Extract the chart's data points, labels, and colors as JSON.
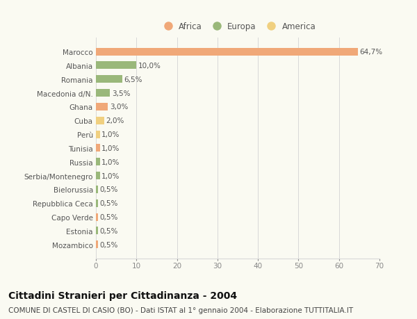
{
  "categories": [
    "Mozambico",
    "Estonia",
    "Capo Verde",
    "Repubblica Ceca",
    "Bielorussia",
    "Serbia/Montenegro",
    "Russia",
    "Tunisia",
    "Perù",
    "Cuba",
    "Ghana",
    "Macedonia d/N.",
    "Romania",
    "Albania",
    "Marocco"
  ],
  "values": [
    0.5,
    0.5,
    0.5,
    0.5,
    0.5,
    1.0,
    1.0,
    1.0,
    1.0,
    2.0,
    3.0,
    3.5,
    6.5,
    10.0,
    64.7
  ],
  "continents": [
    "Africa",
    "Europa",
    "Africa",
    "Europa",
    "Europa",
    "Europa",
    "Europa",
    "Africa",
    "America",
    "America",
    "Africa",
    "Europa",
    "Europa",
    "Europa",
    "Africa"
  ],
  "labels": [
    "0,5%",
    "0,5%",
    "0,5%",
    "0,5%",
    "0,5%",
    "1,0%",
    "1,0%",
    "1,0%",
    "1,0%",
    "2,0%",
    "3,0%",
    "3,5%",
    "6,5%",
    "10,0%",
    "64,7%"
  ],
  "continent_colors": {
    "Africa": "#f0a878",
    "Europa": "#9ab87a",
    "America": "#f0d080"
  },
  "legend_items": [
    {
      "label": "Africa",
      "color": "#f0a878"
    },
    {
      "label": "Europa",
      "color": "#9ab87a"
    },
    {
      "label": "America",
      "color": "#f0d080"
    }
  ],
  "xlim": [
    0,
    70
  ],
  "xticks": [
    0,
    10,
    20,
    30,
    40,
    50,
    60,
    70
  ],
  "title": "Cittadini Stranieri per Cittadinanza - 2004",
  "subtitle": "COMUNE DI CASTEL DI CASIO (BO) - Dati ISTAT al 1° gennaio 2004 - Elaborazione TUTTITALIA.IT",
  "background_color": "#fafaf2",
  "bar_height": 0.55,
  "grid_color": "#d8d8d8",
  "title_fontsize": 10,
  "subtitle_fontsize": 7.5,
  "label_fontsize": 7.5,
  "tick_fontsize": 7.5,
  "legend_fontsize": 8.5
}
